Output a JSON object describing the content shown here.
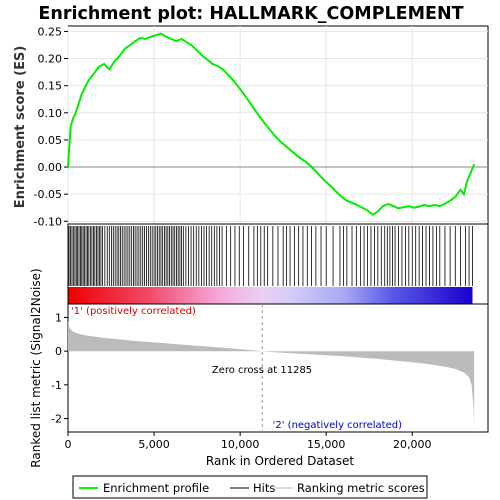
{
  "chart_data": {
    "type": "line",
    "title": "Enrichment plot: HALLMARK_COMPLEMENT",
    "es_panel": {
      "ylabel": "Enrichment score (ES)",
      "ylim": [
        -0.105,
        0.26
      ],
      "y_ticks": [
        0.25,
        0.2,
        0.15,
        0.1,
        0.05,
        0.0,
        -0.05,
        -0.1
      ],
      "y_tick_labels": [
        "0.25",
        "0.20",
        "0.15",
        "0.10",
        "0.05",
        "0.00",
        "-0.05",
        "-0.10"
      ],
      "series": [
        {
          "name": "Enrichment profile",
          "color": "#00ee00",
          "x": [
            0,
            150,
            300,
            450,
            600,
            800,
            1000,
            1200,
            1500,
            1800,
            2100,
            2400,
            2700,
            3000,
            3300,
            3600,
            3900,
            4200,
            4500,
            4800,
            5100,
            5400,
            5700,
            6000,
            6300,
            6600,
            6900,
            7200,
            7500,
            7800,
            8100,
            8400,
            8700,
            9000,
            9300,
            9600,
            9900,
            10200,
            10500,
            10800,
            11100,
            11400,
            11700,
            12000,
            12300,
            12600,
            12900,
            13200,
            13500,
            13800,
            14100,
            14400,
            14700,
            15000,
            15300,
            15600,
            15900,
            16200,
            16500,
            16800,
            17100,
            17400,
            17700,
            18000,
            18300,
            18600,
            18900,
            19200,
            19500,
            19800,
            20100,
            20400,
            20700,
            21000,
            21300,
            21600,
            21900,
            22200,
            22500,
            22800,
            23000,
            23200,
            23400,
            23600
          ],
          "y": [
            0.0,
            0.075,
            0.09,
            0.1,
            0.115,
            0.135,
            0.148,
            0.16,
            0.172,
            0.185,
            0.19,
            0.18,
            0.195,
            0.205,
            0.218,
            0.225,
            0.232,
            0.238,
            0.236,
            0.24,
            0.243,
            0.246,
            0.24,
            0.236,
            0.232,
            0.236,
            0.23,
            0.224,
            0.215,
            0.205,
            0.198,
            0.19,
            0.186,
            0.18,
            0.17,
            0.16,
            0.148,
            0.135,
            0.122,
            0.108,
            0.094,
            0.082,
            0.07,
            0.058,
            0.048,
            0.04,
            0.032,
            0.024,
            0.016,
            0.01,
            0.002,
            -0.008,
            -0.018,
            -0.028,
            -0.036,
            -0.046,
            -0.055,
            -0.062,
            -0.066,
            -0.07,
            -0.075,
            -0.08,
            -0.088,
            -0.082,
            -0.072,
            -0.068,
            -0.072,
            -0.076,
            -0.074,
            -0.072,
            -0.075,
            -0.073,
            -0.07,
            -0.072,
            -0.07,
            -0.072,
            -0.068,
            -0.062,
            -0.055,
            -0.042,
            -0.05,
            -0.025,
            -0.01,
            0.005
          ]
        }
      ]
    },
    "hits_panel": {
      "series_name": "Hits",
      "hit_ranks": [
        60,
        150,
        230,
        310,
        400,
        480,
        560,
        640,
        720,
        800,
        880,
        960,
        1050,
        1130,
        1210,
        1300,
        1390,
        1480,
        1560,
        1650,
        1740,
        1820,
        1910,
        2000,
        2140,
        2280,
        2400,
        2520,
        2630,
        2740,
        2850,
        2950,
        3050,
        3150,
        3260,
        3370,
        3480,
        3590,
        3700,
        3800,
        3900,
        4010,
        4120,
        4230,
        4340,
        4450,
        4560,
        4670,
        4780,
        4890,
        5000,
        5100,
        5200,
        5300,
        5400,
        5500,
        5600,
        5700,
        5800,
        5900,
        6000,
        6100,
        6200,
        6300,
        6400,
        6500,
        6600,
        6700,
        6850,
        7000,
        7150,
        7300,
        7450,
        7600,
        7750,
        7900,
        8050,
        8200,
        8350,
        8500,
        8650,
        8800,
        8950,
        9200,
        9450,
        9700,
        9950,
        10200,
        10500,
        10800,
        11000,
        11200,
        11400,
        11600,
        11900,
        12200,
        12500,
        12700,
        12900,
        13150,
        13400,
        13650,
        13900,
        14150,
        14400,
        14700,
        15000,
        15400,
        15800,
        16000,
        16200,
        16500,
        16750,
        17000,
        17200,
        17400,
        17600,
        17800,
        18000,
        18200,
        18400,
        18550,
        18700,
        18850,
        19000,
        19200,
        19400,
        19600,
        19800,
        20000,
        20200,
        20400,
        20600,
        20800,
        21000,
        21200,
        21400,
        21600,
        21900,
        22200,
        22500,
        22800,
        23100,
        23300,
        23500
      ]
    },
    "ranking_panel": {
      "ylabel": "Ranked list metric (Signal2Noise)",
      "series_name": "Ranking metric scores",
      "ylim": [
        -2.4,
        1.4
      ],
      "y_ticks": [
        1,
        0,
        -1,
        -2
      ],
      "y_tick_labels": [
        "1",
        "0",
        "-1",
        "-2"
      ],
      "x": [
        0,
        100,
        300,
        600,
        1000,
        2000,
        3000,
        4000,
        5000,
        6000,
        7000,
        8000,
        9000,
        10000,
        11285,
        12000,
        13000,
        14000,
        15000,
        16000,
        17000,
        18000,
        19000,
        20000,
        21000,
        22000,
        22500,
        23000,
        23300,
        23450,
        23550,
        23600
      ],
      "y": [
        0.9,
        0.68,
        0.58,
        0.52,
        0.47,
        0.4,
        0.35,
        0.3,
        0.26,
        0.22,
        0.18,
        0.14,
        0.1,
        0.06,
        0.0,
        -0.03,
        -0.06,
        -0.09,
        -0.12,
        -0.15,
        -0.19,
        -0.23,
        -0.28,
        -0.33,
        -0.39,
        -0.47,
        -0.53,
        -0.63,
        -0.78,
        -1.0,
        -1.6,
        -2.3
      ],
      "zero_cross_label": "Zero cross at 11285",
      "zero_cross": 11285,
      "positive_label": "'1' (positively correlated)",
      "negative_label": "'2' (negatively correlated)"
    },
    "xlabel": "Rank in Ordered Dataset",
    "xlim": [
      0,
      24400
    ],
    "x_ticks": [
      0,
      5000,
      10000,
      15000,
      20000
    ],
    "x_tick_labels": [
      "0",
      "5,000",
      "10,000",
      "15,000",
      "20,000"
    ],
    "legend": {
      "placement": "bottom",
      "entries": [
        {
          "label": "Enrichment profile",
          "color": "#00ee00"
        },
        {
          "label": "Hits",
          "color": "#000000"
        },
        {
          "label": "Ranking metric scores",
          "color": "#bbbbbb"
        }
      ]
    }
  }
}
